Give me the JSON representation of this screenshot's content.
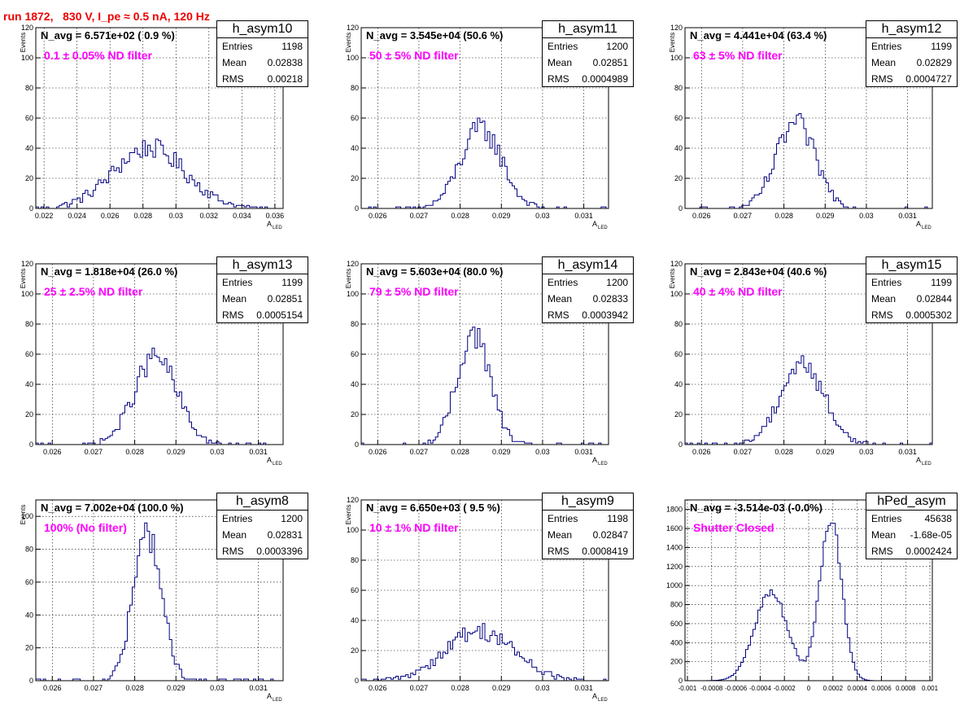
{
  "canvas_title": "run 1872,   830 V, I_pe ≈ 0.5 nA, 120 Hz",
  "chart_data": [
    {
      "type": "bar",
      "title": "h_asym10",
      "ylabel": "Events",
      "xlabel": "A",
      "xlabel_sub": "LED",
      "xlim": [
        0.0215,
        0.0365
      ],
      "ylim": [
        0,
        120
      ],
      "xticks": [
        0.022,
        0.024,
        0.026,
        0.028,
        0.03,
        0.032,
        0.034,
        0.036
      ],
      "xtick_labels": [
        "0.022",
        "0.024",
        "0.026",
        "0.028",
        "0.03",
        "0.032",
        "0.034",
        "0.036"
      ],
      "yticks": [
        0,
        20,
        40,
        60,
        80,
        100,
        120
      ],
      "stats": {
        "entries_label": "Entries",
        "entries": "1198",
        "mean_label": "Mean",
        "mean": "0.02838",
        "rms_label": "RMS",
        "rms": "0.00218"
      },
      "navg": "N_avg = 6.571e+02 ( 0.9 %)",
      "annotation": "0.1 ± 0.05% ND filter",
      "hist": {
        "mean": 0.02838,
        "sigma": 0.00218,
        "max": 40,
        "bins": 95,
        "range": [
          0.0215,
          0.0365
        ]
      }
    },
    {
      "type": "bar",
      "title": "h_asym11",
      "ylabel": "Events",
      "xlabel": "A",
      "xlabel_sub": "LED",
      "xlim": [
        0.0256,
        0.0316
      ],
      "ylim": [
        0,
        120
      ],
      "xticks": [
        0.026,
        0.027,
        0.028,
        0.029,
        0.03,
        0.031
      ],
      "xtick_labels": [
        "0.026",
        "0.027",
        "0.028",
        "0.029",
        "0.03",
        "0.031"
      ],
      "yticks": [
        0,
        20,
        40,
        60,
        80,
        100,
        120
      ],
      "stats": {
        "entries_label": "Entries",
        "entries": "1200",
        "mean_label": "Mean",
        "mean": "0.02851",
        "rms_label": "RMS",
        "rms": "0.0004989"
      },
      "navg": "N_avg = 3.545e+04 (50.6 %)",
      "annotation": "50 ± 5% ND filter",
      "hist": {
        "mean": 0.02851,
        "sigma": 0.0004989,
        "max": 53,
        "bins": 100,
        "range": [
          0.0256,
          0.0316
        ]
      }
    },
    {
      "type": "bar",
      "title": "h_asym12",
      "ylabel": "Events",
      "xlabel": "A",
      "xlabel_sub": "LED",
      "xlim": [
        0.0256,
        0.0316
      ],
      "ylim": [
        0,
        120
      ],
      "xticks": [
        0.026,
        0.027,
        0.028,
        0.029,
        0.03,
        0.031
      ],
      "xtick_labels": [
        "0.026",
        "0.027",
        "0.028",
        "0.029",
        "0.03",
        "0.031"
      ],
      "yticks": [
        0,
        20,
        40,
        60,
        80,
        100,
        120
      ],
      "stats": {
        "entries_label": "Entries",
        "entries": "1199",
        "mean_label": "Mean",
        "mean": "0.02829",
        "rms_label": "RMS",
        "rms": "0.0004727"
      },
      "navg": "N_avg = 4.441e+04 (63.4 %)",
      "annotation": "63 ± 5% ND filter",
      "hist": {
        "mean": 0.02829,
        "sigma": 0.0004727,
        "max": 56,
        "bins": 100,
        "range": [
          0.0256,
          0.0316
        ]
      }
    },
    {
      "type": "bar",
      "title": "h_asym13",
      "ylabel": "Events",
      "xlabel": "A",
      "xlabel_sub": "LED",
      "xlim": [
        0.0256,
        0.0316
      ],
      "ylim": [
        0,
        120
      ],
      "xticks": [
        0.026,
        0.027,
        0.028,
        0.029,
        0.03,
        0.031
      ],
      "xtick_labels": [
        "0.026",
        "0.027",
        "0.028",
        "0.029",
        "0.03",
        "0.031"
      ],
      "yticks": [
        0,
        20,
        40,
        60,
        80,
        100,
        120
      ],
      "stats": {
        "entries_label": "Entries",
        "entries": "1199",
        "mean_label": "Mean",
        "mean": "0.02851",
        "rms_label": "RMS",
        "rms": "0.0005154"
      },
      "navg": "N_avg = 1.818e+04 (26.0 %)",
      "annotation": "25 ± 2.5% ND filter",
      "hist": {
        "mean": 0.02851,
        "sigma": 0.0005154,
        "max": 58,
        "bins": 100,
        "range": [
          0.0256,
          0.0316
        ]
      }
    },
    {
      "type": "bar",
      "title": "h_asym14",
      "ylabel": "Events",
      "xlabel": "A",
      "xlabel_sub": "LED",
      "xlim": [
        0.0256,
        0.0316
      ],
      "ylim": [
        0,
        120
      ],
      "xticks": [
        0.026,
        0.027,
        0.028,
        0.029,
        0.03,
        0.031
      ],
      "xtick_labels": [
        "0.026",
        "0.027",
        "0.028",
        "0.029",
        "0.03",
        "0.031"
      ],
      "yticks": [
        0,
        20,
        40,
        60,
        80,
        100,
        120
      ],
      "stats": {
        "entries_label": "Entries",
        "entries": "1200",
        "mean_label": "Mean",
        "mean": "0.02833",
        "rms_label": "RMS",
        "rms": "0.0003942"
      },
      "navg": "N_avg = 5.603e+04 (80.0 %)",
      "annotation": "79 ± 5% ND filter",
      "hist": {
        "mean": 0.02833,
        "sigma": 0.0003942,
        "max": 74,
        "bins": 100,
        "range": [
          0.0256,
          0.0316
        ]
      }
    },
    {
      "type": "bar",
      "title": "h_asym15",
      "ylabel": "Events",
      "xlabel": "A",
      "xlabel_sub": "LED",
      "xlim": [
        0.0256,
        0.0316
      ],
      "ylim": [
        0,
        120
      ],
      "xticks": [
        0.026,
        0.027,
        0.028,
        0.029,
        0.03,
        0.031
      ],
      "xtick_labels": [
        "0.026",
        "0.027",
        "0.028",
        "0.029",
        "0.03",
        "0.031"
      ],
      "yticks": [
        0,
        20,
        40,
        60,
        80,
        100,
        120
      ],
      "stats": {
        "entries_label": "Entries",
        "entries": "1199",
        "mean_label": "Mean",
        "mean": "0.02844",
        "rms_label": "RMS",
        "rms": "0.0005302"
      },
      "navg": "N_avg = 2.843e+04 (40.6 %)",
      "annotation": "40 ± 4% ND filter",
      "hist": {
        "mean": 0.02844,
        "sigma": 0.0005302,
        "max": 54,
        "bins": 100,
        "range": [
          0.0256,
          0.0316
        ]
      }
    },
    {
      "type": "bar",
      "title": "h_asym8",
      "ylabel": "Events",
      "xlabel": "A",
      "xlabel_sub": "LED",
      "xlim": [
        0.0256,
        0.0316
      ],
      "ylim": [
        0,
        110
      ],
      "xticks": [
        0.026,
        0.027,
        0.028,
        0.029,
        0.03,
        0.031
      ],
      "xtick_labels": [
        "0.026",
        "0.027",
        "0.028",
        "0.029",
        "0.03",
        "0.031"
      ],
      "yticks": [
        0,
        20,
        40,
        60,
        80,
        100
      ],
      "stats": {
        "entries_label": "Entries",
        "entries": "1200",
        "mean_label": "Mean",
        "mean": "0.02831",
        "rms_label": "RMS",
        "rms": "0.0003396"
      },
      "navg": "N_avg = 7.002e+04 (100.0 %)",
      "annotation": "100% (No filter)",
      "hist": {
        "mean": 0.02831,
        "sigma": 0.0003396,
        "max": 90,
        "bins": 100,
        "range": [
          0.0256,
          0.0316
        ]
      }
    },
    {
      "type": "bar",
      "title": "h_asym9",
      "ylabel": "Events",
      "xlabel": "A",
      "xlabel_sub": "LED",
      "xlim": [
        0.0256,
        0.0316
      ],
      "ylim": [
        0,
        120
      ],
      "xticks": [
        0.026,
        0.027,
        0.028,
        0.029,
        0.03,
        0.031
      ],
      "xtick_labels": [
        "0.026",
        "0.027",
        "0.028",
        "0.029",
        "0.03",
        "0.031"
      ],
      "yticks": [
        0,
        20,
        40,
        60,
        80,
        100,
        120
      ],
      "stats": {
        "entries_label": "Entries",
        "entries": "1198",
        "mean_label": "Mean",
        "mean": "0.02847",
        "rms_label": "RMS",
        "rms": "0.0008419"
      },
      "navg": "N_avg = 6.650e+03 ( 9.5 %)",
      "annotation": "10 ± 1% ND filter",
      "hist": {
        "mean": 0.02847,
        "sigma": 0.0008419,
        "max": 33,
        "bins": 100,
        "range": [
          0.0256,
          0.0316
        ]
      }
    },
    {
      "type": "bar",
      "title": "hPed_asym",
      "ylabel": "",
      "xlabel": "",
      "xlabel_sub": "",
      "xlim": [
        -0.00102,
        0.00102
      ],
      "ylim": [
        0,
        1900
      ],
      "xticks": [
        -0.001,
        -0.0008,
        -0.0006,
        -0.0004,
        -0.0002,
        0,
        0.0002,
        0.0004,
        0.0006,
        0.0008,
        0.001
      ],
      "xtick_labels": [
        "-0.001",
        "-0.0008",
        "-0.0006",
        "-0.0004",
        "-0.0002",
        "0",
        "0.0002",
        "0.0004",
        "0.0006",
        "0.0008",
        "0.001"
      ],
      "yticks": [
        0,
        200,
        400,
        600,
        800,
        1000,
        1200,
        1400,
        1600,
        1800
      ],
      "stats": {
        "entries_label": "Entries",
        "entries": "45638",
        "mean_label": "Mean",
        "mean": "-1.68e-05",
        "rms_label": "RMS",
        "rms": "0.0002424"
      },
      "navg": "N_avg = -3.514e-03 (-0.0%)",
      "annotation": "Shutter Closed",
      "hist": {
        "bimodal": true,
        "peaks": [
          {
            "mean": -0.00031,
            "sigma": 0.000135,
            "max": 930
          },
          {
            "mean": 0.00018,
            "sigma": 9e-05,
            "max": 1720
          }
        ],
        "bins": 100,
        "range": [
          -0.001,
          0.001
        ]
      }
    }
  ]
}
